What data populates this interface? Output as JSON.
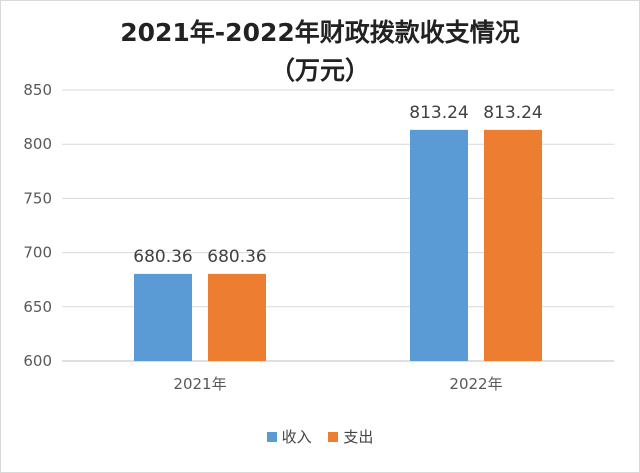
{
  "chart_data": {
    "type": "bar",
    "title": "2021年-2022年财政拨款收支情况",
    "subtitle": "（万元）",
    "categories": [
      "2021年",
      "2022年"
    ],
    "series": [
      {
        "name": "收入",
        "color": "#5b9bd5",
        "values": [
          680.36,
          813.24
        ],
        "labels": [
          "680.36",
          "813.24"
        ]
      },
      {
        "name": "支出",
        "color": "#ed7d31",
        "values": [
          680.36,
          813.24
        ],
        "labels": [
          "680.36",
          "813.24"
        ]
      }
    ],
    "ylim": [
      600,
      850
    ],
    "yticks": [
      "600",
      "650",
      "700",
      "750",
      "800",
      "850"
    ],
    "grid": true,
    "legend": "bottom"
  }
}
